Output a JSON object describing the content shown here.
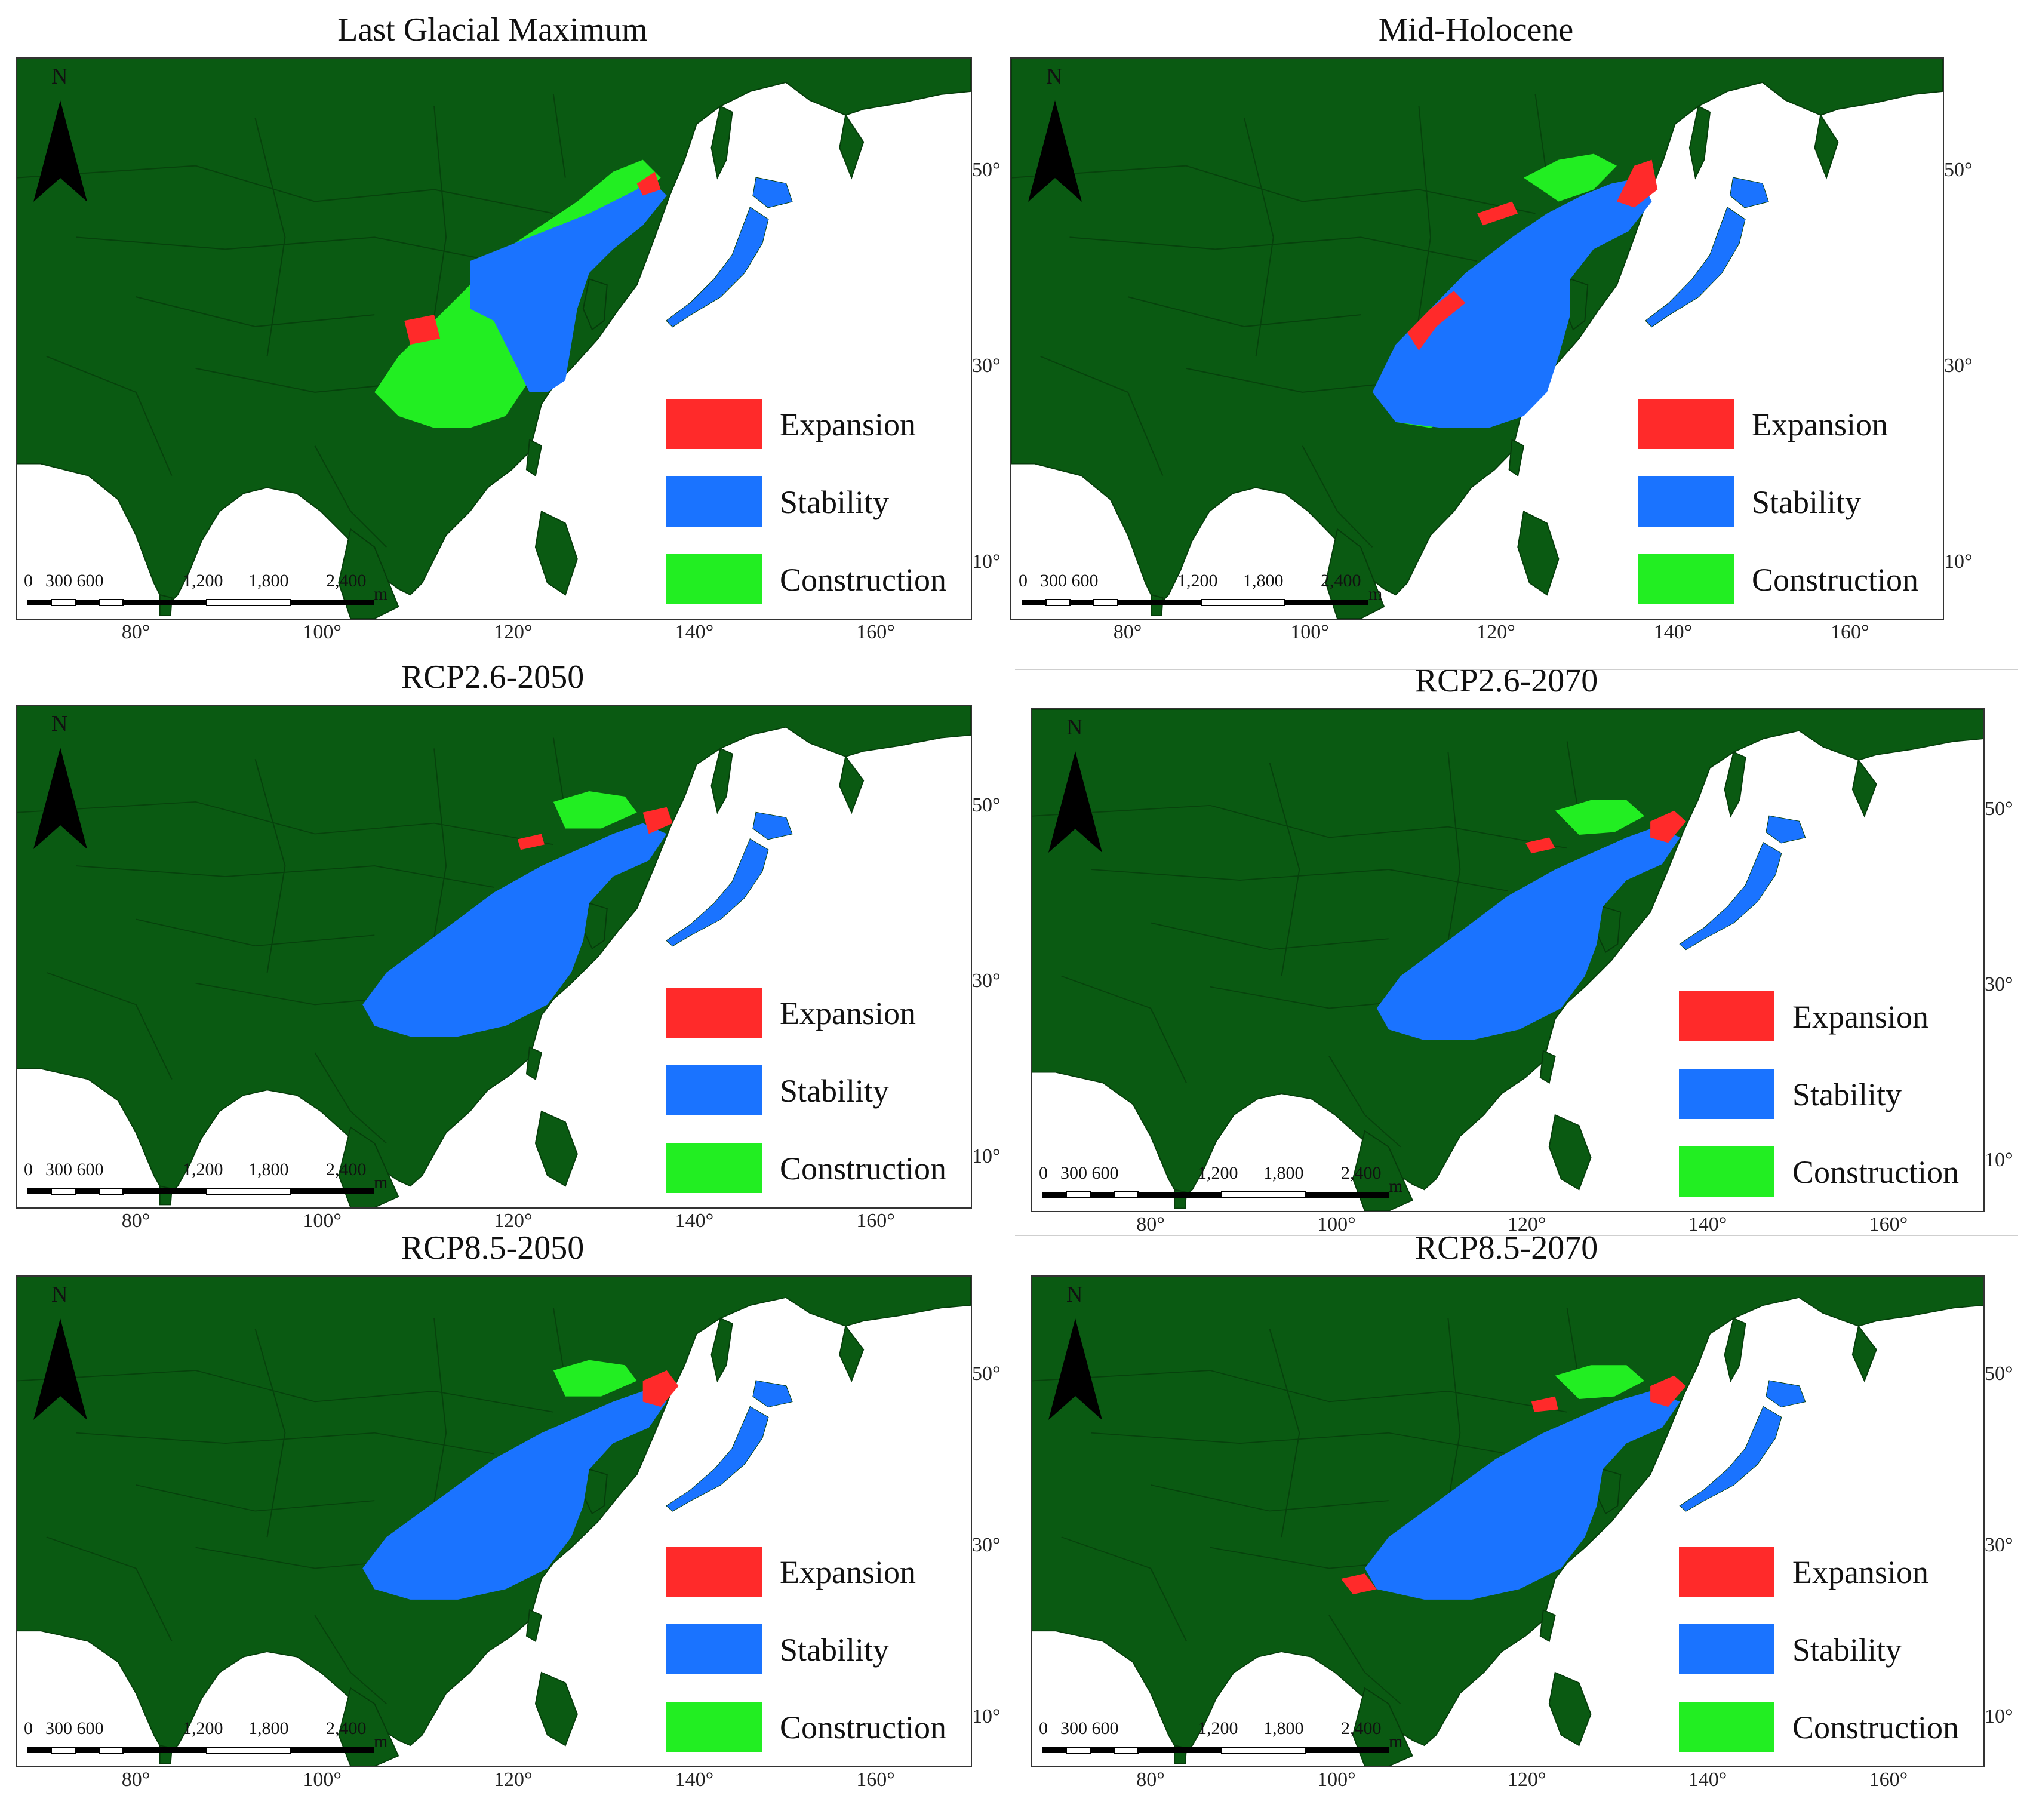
{
  "colors": {
    "land": "#0a5a12",
    "boundary": "#063d0b",
    "ocean": "#ffffff",
    "expansion": "#ff2a2a",
    "stability": "#1a73ff",
    "construction": "#22ee22"
  },
  "legend": {
    "expansion": "Expansion",
    "stability": "Stability",
    "construction": "Construction"
  },
  "north_label": "N",
  "scale_labels": [
    "0",
    "300 600",
    "1,200",
    "1,800",
    "2,400",
    "m"
  ],
  "lon_labels": [
    "80°",
    "100°",
    "120°",
    "140°",
    "160°"
  ],
  "lat_labels": [
    "50°",
    "30°",
    "10°"
  ],
  "panels": [
    {
      "title": "Last Glacial Maximum"
    },
    {
      "title": "Mid-Holocene"
    },
    {
      "title": "RCP2.6-2050"
    },
    {
      "title": "RCP2.6-2070"
    },
    {
      "title": "RCP8.5-2050"
    },
    {
      "title": "RCP8.5-2070"
    }
  ]
}
